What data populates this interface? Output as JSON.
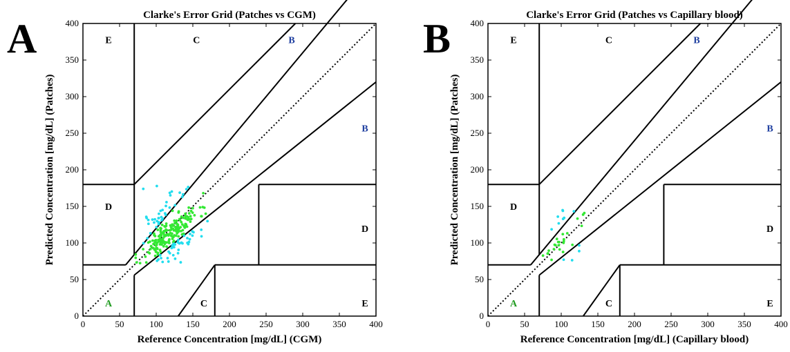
{
  "colors": {
    "zone_a": "#1f9a1f",
    "zone_b": "#1f3fa0",
    "zone_other": "#000000",
    "point_in_a": "#33e833",
    "point_outside": "#22ddee"
  },
  "chart_data": [
    {
      "type": "scatter",
      "panel_label": "A",
      "title": "Clarke's Error Grid (Patches vs CGM)",
      "xlabel": "Reference Concentration [mg/dL] (CGM)",
      "ylabel": "Predicted Concentration [mg/dL] (Patches)",
      "xlim": [
        0,
        400
      ],
      "ylim": [
        0,
        400
      ],
      "xticks": [
        0,
        50,
        100,
        150,
        200,
        250,
        300,
        350,
        400
      ],
      "yticks": [
        0,
        50,
        100,
        150,
        200,
        250,
        300,
        350,
        400
      ],
      "zone_labels": [
        {
          "text": "A",
          "zone": "A",
          "x": 35,
          "y": 18
        },
        {
          "text": "B",
          "zone": "B",
          "x": 285,
          "y": 378
        },
        {
          "text": "B",
          "zone": "B",
          "x": 385,
          "y": 257
        },
        {
          "text": "C",
          "zone": "C",
          "x": 155,
          "y": 378
        },
        {
          "text": "C",
          "zone": "C",
          "x": 165,
          "y": 18
        },
        {
          "text": "D",
          "zone": "D",
          "x": 35,
          "y": 150
        },
        {
          "text": "D",
          "zone": "D",
          "x": 385,
          "y": 120
        },
        {
          "text": "E",
          "zone": "E",
          "x": 35,
          "y": 378
        },
        {
          "text": "E",
          "zone": "E",
          "x": 385,
          "y": 18
        }
      ],
      "series": [
        {
          "name": "",
          "generator": {
            "seed": 11,
            "n_in": 190,
            "n_out": 80,
            "x_center": 118,
            "x_spread": 20,
            "slope": 0.75,
            "intercept": 25,
            "y_noise": 10,
            "x_min": 72,
            "x_max": 170,
            "y_min": 72,
            "y_max": 180
          }
        }
      ]
    },
    {
      "type": "scatter",
      "panel_label": "B",
      "title": "Clarke's Error Grid (Patches vs Capillary blood)",
      "xlabel": "Reference Concentration [mg/dL] (Capillary blood)",
      "ylabel": "Predicted Concentration [mg/dL] (Patches)",
      "xlim": [
        0,
        400
      ],
      "ylim": [
        0,
        400
      ],
      "xticks": [
        0,
        50,
        100,
        150,
        200,
        250,
        300,
        350,
        400
      ],
      "yticks": [
        0,
        50,
        100,
        150,
        200,
        250,
        300,
        350,
        400
      ],
      "zone_labels": [
        {
          "text": "A",
          "zone": "A",
          "x": 35,
          "y": 18
        },
        {
          "text": "B",
          "zone": "B",
          "x": 285,
          "y": 378
        },
        {
          "text": "B",
          "zone": "B",
          "x": 385,
          "y": 257
        },
        {
          "text": "C",
          "zone": "C",
          "x": 165,
          "y": 378
        },
        {
          "text": "C",
          "zone": "C",
          "x": 165,
          "y": 18
        },
        {
          "text": "D",
          "zone": "D",
          "x": 35,
          "y": 150
        },
        {
          "text": "D",
          "zone": "D",
          "x": 385,
          "y": 120
        },
        {
          "text": "E",
          "zone": "E",
          "x": 35,
          "y": 378
        },
        {
          "text": "E",
          "zone": "E",
          "x": 385,
          "y": 18
        }
      ],
      "series": [
        {
          "name": "",
          "generator": {
            "seed": 5,
            "n_in": 24,
            "n_out": 12,
            "x_center": 105,
            "x_spread": 15,
            "slope": 0.9,
            "intercept": 12,
            "y_noise": 8,
            "x_min": 74,
            "x_max": 140,
            "y_min": 74,
            "y_max": 145
          }
        }
      ]
    }
  ]
}
